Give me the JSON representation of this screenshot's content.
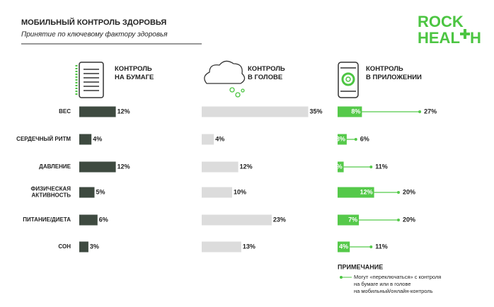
{
  "chart_data": {
    "type": "bar",
    "title": "МОБИЛЬНЫЙ КОНТРОЛЬ ЗДОРОВЬЯ",
    "subtitle": "Принятие по ключевому фактору здоровья",
    "logo": {
      "line1": "ROCK",
      "line2_left": "HEAL",
      "line2_right": "H"
    },
    "categories": [
      "ВЕС",
      "СЕРДЕЧНЫЙ РИТМ",
      "ДАВЛЕНИЕ",
      "ФИЗИЧЕСКАЯ АКТИВНОСТЬ",
      "ПИТАНИЕ/ДИЕТА",
      "СОН"
    ],
    "series": [
      {
        "name": "КОНТРОЛЬ НА БУМАГЕ",
        "color": "#3e4a40",
        "values": [
          12,
          4,
          12,
          5,
          6,
          3
        ],
        "value_labels": [
          "12%",
          "4%",
          "12%",
          "5%",
          "6%",
          "3%"
        ]
      },
      {
        "name": "КОНТРОЛЬ В ГОЛОВЕ",
        "color": "#dcdcdc",
        "values": [
          35,
          4,
          12,
          10,
          23,
          13
        ],
        "value_labels": [
          "35%",
          "4%",
          "12%",
          "10%",
          "23%",
          "13%"
        ]
      },
      {
        "name": "КОНТРОЛЬ В ПРИЛОЖЕНИИ",
        "color": "#55c94a",
        "values": [
          8,
          3,
          2,
          12,
          7,
          4
        ],
        "value_labels": [
          "8%",
          "3%",
          "2%",
          "12%",
          "7%",
          "4%"
        ],
        "switch_values": [
          27,
          6,
          11,
          20,
          20,
          11
        ],
        "switch_labels": [
          "27%",
          "6%",
          "11%",
          "20%",
          "20%",
          "11%"
        ]
      }
    ],
    "note": {
      "title": "ПРИМЕЧАНИЕ",
      "lines": [
        "Могут «переключаться» с контроля",
        "на бумаге или в голове",
        "на мобильный/онлайн-контроль"
      ]
    }
  }
}
